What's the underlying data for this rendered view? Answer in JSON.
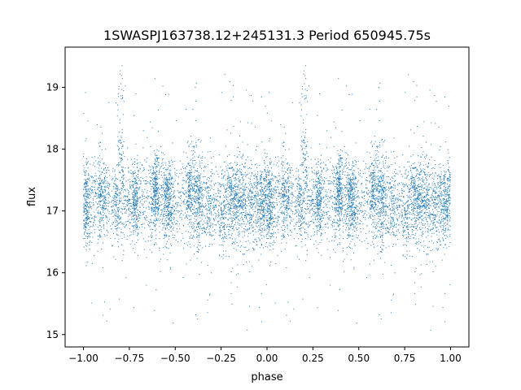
{
  "chart_data": {
    "type": "scatter",
    "title": "1SWASPJ163738.12+245131.3 Period 650945.75s",
    "xlabel": "phase",
    "ylabel": "flux",
    "xlim": [
      -1.1,
      1.1
    ],
    "ylim": [
      14.8,
      19.65
    ],
    "x_ticks": [
      -1.0,
      -0.75,
      -0.5,
      -0.25,
      0.0,
      0.25,
      0.5,
      0.75,
      1.0
    ],
    "x_tick_labels": [
      "−1.00",
      "−0.75",
      "−0.50",
      "−0.25",
      "0.00",
      "0.25",
      "0.50",
      "0.75",
      "1.00"
    ],
    "y_ticks": [
      15,
      16,
      17,
      18,
      19
    ],
    "y_tick_labels": [
      "15",
      "16",
      "17",
      "18",
      "19"
    ],
    "grid": false,
    "legend": "none",
    "marker_color": "#1f77b4",
    "series": [
      {
        "phase_range": [
          -1.0,
          1.0
        ],
        "points_approx": 9000,
        "mirrored_period": 1.0,
        "baseline_flux": 17.15,
        "core_spread": 0.35,
        "flux_range": [
          15.05,
          19.45
        ],
        "sample_points": [
          [
            -1.0,
            17.1
          ],
          [
            -0.95,
            17.6
          ],
          [
            -0.9,
            16.9
          ],
          [
            -0.8,
            17.8
          ],
          [
            -0.79,
            19.4
          ],
          [
            -0.7,
            17.3
          ],
          [
            -0.65,
            17.6
          ],
          [
            -0.5,
            17.7
          ],
          [
            -0.4,
            17.1
          ],
          [
            -0.3,
            16.8
          ],
          [
            -0.25,
            16.0
          ],
          [
            -0.2,
            17.2
          ],
          [
            -0.1,
            17.1
          ],
          [
            0.0,
            17.1
          ],
          [
            0.05,
            17.6
          ],
          [
            0.1,
            16.8
          ],
          [
            0.2,
            17.8
          ],
          [
            0.21,
            19.4
          ],
          [
            0.3,
            17.3
          ],
          [
            0.35,
            17.6
          ],
          [
            0.5,
            17.7
          ],
          [
            0.6,
            17.1
          ],
          [
            0.7,
            16.8
          ],
          [
            0.75,
            16.0
          ],
          [
            0.8,
            17.2
          ],
          [
            0.9,
            17.1
          ],
          [
            1.0,
            17.1
          ]
        ]
      }
    ]
  }
}
